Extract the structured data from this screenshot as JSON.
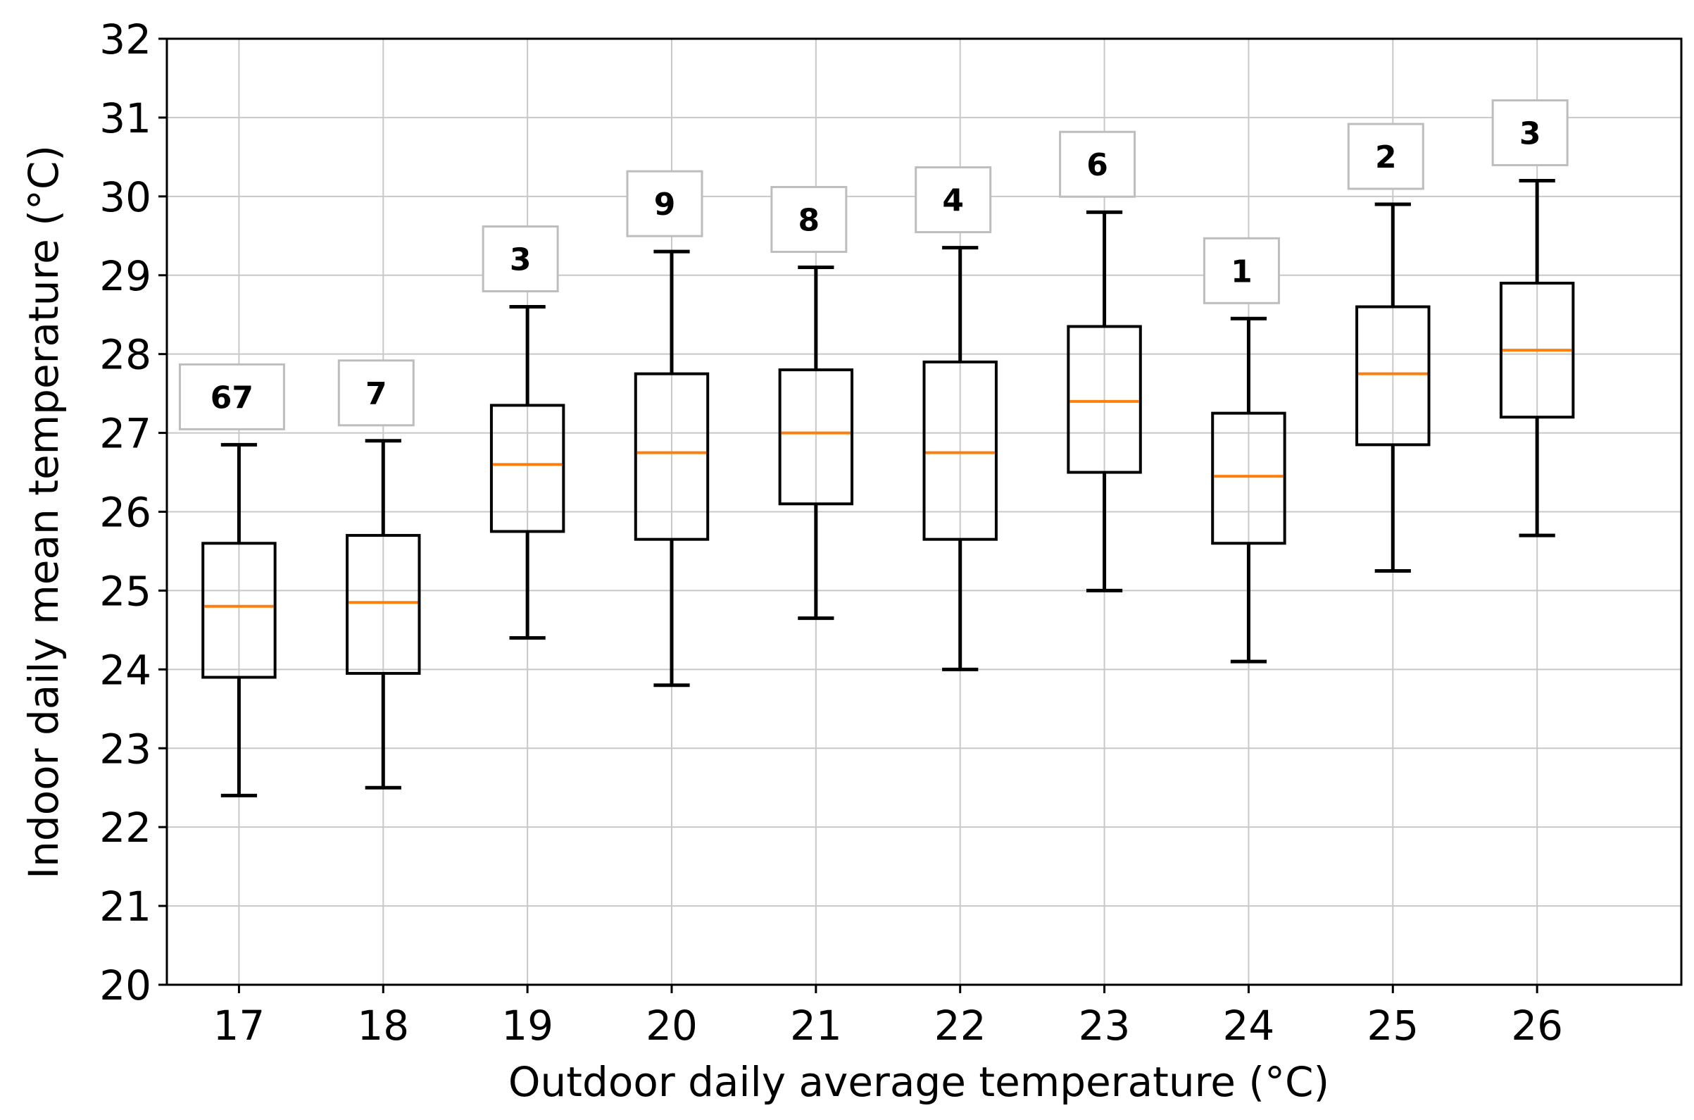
{
  "chart_data": {
    "type": "box",
    "title": "",
    "xlabel": "Outdoor daily average temperature (°C)",
    "ylabel": "Indoor daily  mean temperature (°C)",
    "ylim": [
      20,
      32
    ],
    "yticks": [
      "20",
      "21",
      "22",
      "23",
      "24",
      "25",
      "26",
      "27",
      "28",
      "29",
      "30",
      "31",
      "32"
    ],
    "grid": true,
    "categories": [
      "17",
      "18",
      "19",
      "20",
      "21",
      "22",
      "23",
      "24",
      "25",
      "26"
    ],
    "boxes": [
      {
        "category": "17",
        "whisker_low": 22.4,
        "q1": 23.9,
        "median": 24.8,
        "q3": 25.6,
        "whisker_high": 26.85,
        "count": "67"
      },
      {
        "category": "18",
        "whisker_low": 22.5,
        "q1": 23.95,
        "median": 24.85,
        "q3": 25.7,
        "whisker_high": 26.9,
        "count": "7"
      },
      {
        "category": "19",
        "whisker_low": 24.4,
        "q1": 25.75,
        "median": 26.6,
        "q3": 27.35,
        "whisker_high": 28.6,
        "count": "3"
      },
      {
        "category": "20",
        "whisker_low": 23.8,
        "q1": 25.65,
        "median": 26.75,
        "q3": 27.75,
        "whisker_high": 29.3,
        "count": "9"
      },
      {
        "category": "21",
        "whisker_low": 24.65,
        "q1": 26.1,
        "median": 27.0,
        "q3": 27.8,
        "whisker_high": 29.1,
        "count": "8"
      },
      {
        "category": "22",
        "whisker_low": 24.0,
        "q1": 25.65,
        "median": 26.75,
        "q3": 27.9,
        "whisker_high": 29.35,
        "count": "4"
      },
      {
        "category": "23",
        "whisker_low": 25.0,
        "q1": 26.5,
        "median": 27.4,
        "q3": 28.35,
        "whisker_high": 29.8,
        "count": "6"
      },
      {
        "category": "24",
        "whisker_low": 24.1,
        "q1": 25.6,
        "median": 26.45,
        "q3": 27.25,
        "whisker_high": 28.45,
        "count": "1"
      },
      {
        "category": "25",
        "whisker_low": 25.25,
        "q1": 26.85,
        "median": 27.75,
        "q3": 28.6,
        "whisker_high": 29.9,
        "count": "2"
      },
      {
        "category": "26",
        "whisker_low": 25.7,
        "q1": 27.2,
        "median": 28.05,
        "q3": 28.9,
        "whisker_high": 30.2,
        "count": "3"
      }
    ],
    "colors": {
      "box": "#000000",
      "median": "#ff7f0e",
      "grid": "#c8c8c8",
      "label_box": "#bdbdbd"
    }
  }
}
